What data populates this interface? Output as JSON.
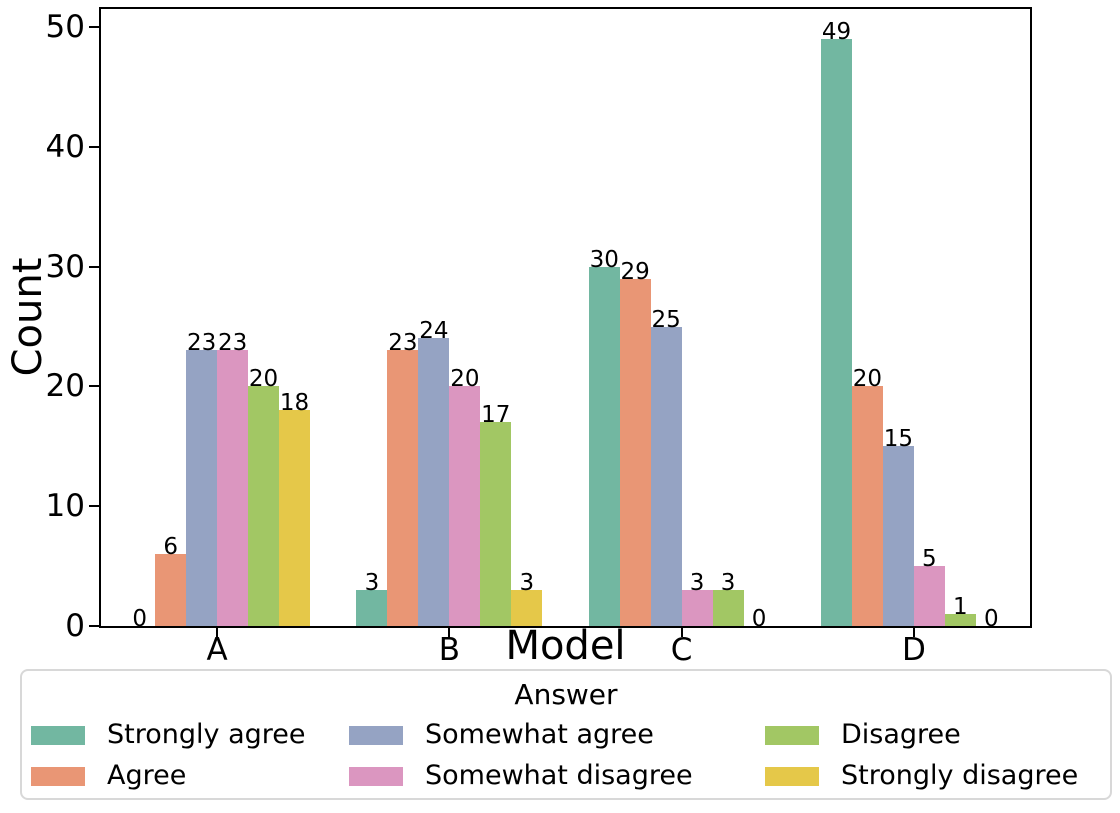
{
  "chart_data": {
    "type": "bar",
    "title": "",
    "xlabel": "Model",
    "ylabel": "Count",
    "categories": [
      "A",
      "B",
      "C",
      "D"
    ],
    "series": [
      {
        "name": "Strongly agree",
        "color": "#72b7a1",
        "values": [
          0,
          3,
          30,
          49
        ]
      },
      {
        "name": "Agree",
        "color": "#e99675",
        "values": [
          6,
          23,
          29,
          20
        ]
      },
      {
        "name": "Somewhat agree",
        "color": "#95a3c3",
        "values": [
          23,
          24,
          25,
          15
        ]
      },
      {
        "name": "Somewhat disagree",
        "color": "#db96c0",
        "values": [
          23,
          20,
          3,
          5
        ]
      },
      {
        "name": "Disagree",
        "color": "#a2c764",
        "values": [
          20,
          17,
          3,
          1
        ]
      },
      {
        "name": "Strongly disagree",
        "color": "#e5c849",
        "values": [
          18,
          3,
          0,
          0
        ]
      }
    ],
    "yticks": [
      0,
      10,
      20,
      30,
      40,
      50
    ],
    "ylim": [
      0,
      51.5
    ],
    "bar_value_labels": true,
    "grid": false,
    "legend": {
      "title": "Answer",
      "position": "bottom",
      "columns": 3
    },
    "axis_color": "#000000",
    "text_color": "#000000",
    "legend_border_color": "#d8d8d8"
  }
}
